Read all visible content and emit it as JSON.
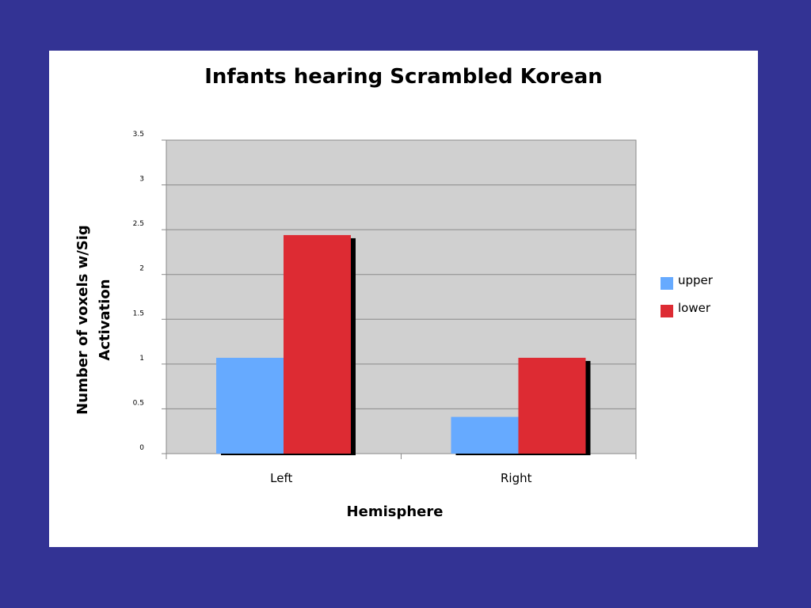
{
  "chart_data": {
    "type": "bar",
    "title": "Infants hearing Scrambled Korean",
    "xlabel": "Hemisphere",
    "ylabel": "Number of voxels w/Sig Activation",
    "ylabel_lines": [
      "Number of voxels w/Sig",
      "Activation"
    ],
    "categories": [
      "Left",
      "Right"
    ],
    "series": [
      {
        "name": "upper",
        "values": [
          1.07,
          0.41
        ],
        "color": "#66aaff"
      },
      {
        "name": "lower",
        "values": [
          2.44,
          1.07
        ],
        "color": "#dd2b33"
      }
    ],
    "ylim": [
      0,
      3.5
    ],
    "yticks": [
      "0",
      "0.5",
      "1",
      "1.5",
      "2",
      "2.5",
      "3",
      "3.5"
    ],
    "grid": true,
    "legend": "right",
    "plot_background": "#d0d0d0"
  }
}
